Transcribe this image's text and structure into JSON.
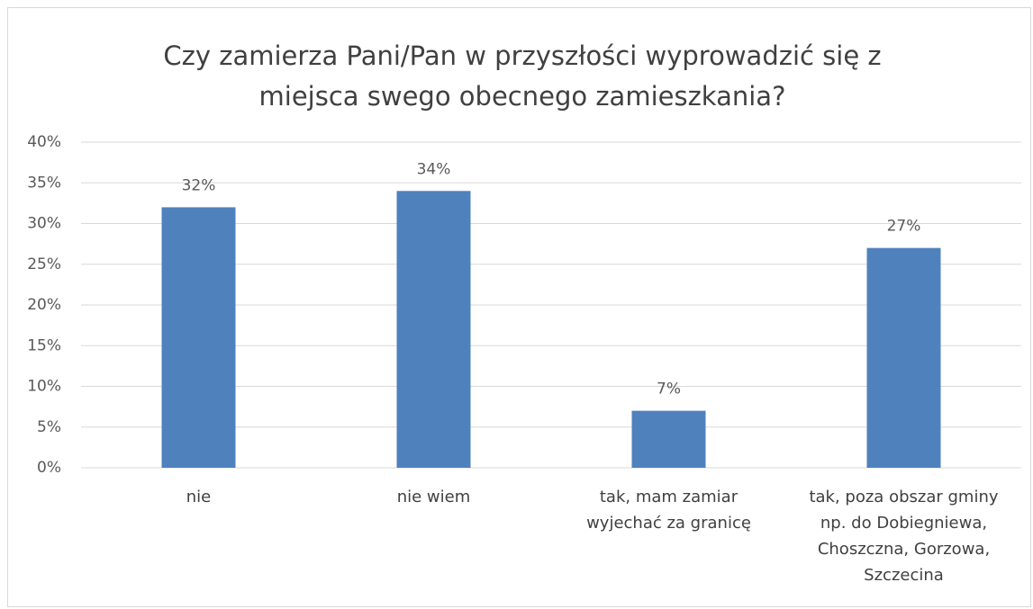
{
  "chart_data": {
    "type": "bar",
    "title": "Czy zamierza Pani/Pan w przyszłości wyprowadzić się z miejsca swego obecnego zamieszkania?",
    "categories": [
      "nie",
      "nie wiem",
      "tak, mam zamiar wyjechać za granicę",
      "tak, poza obszar gminy np. do Dobiegniewa, Choszczna, Gorzowa, Szczecina"
    ],
    "values": [
      32,
      34,
      7,
      27
    ],
    "value_labels": [
      "32%",
      "34%",
      "7%",
      "27%"
    ],
    "color": "#4f81bd",
    "ylim": [
      0,
      40
    ],
    "yticks": [
      {
        "value": 0,
        "label": "0%"
      },
      {
        "value": 5,
        "label": "5%"
      },
      {
        "value": 10,
        "label": "10%"
      },
      {
        "value": 15,
        "label": "15%"
      },
      {
        "value": 20,
        "label": "20%"
      },
      {
        "value": 25,
        "label": "25%"
      },
      {
        "value": 30,
        "label": "30%"
      },
      {
        "value": 35,
        "label": "35%"
      },
      {
        "value": 40,
        "label": "40%"
      }
    ],
    "grid": true
  }
}
